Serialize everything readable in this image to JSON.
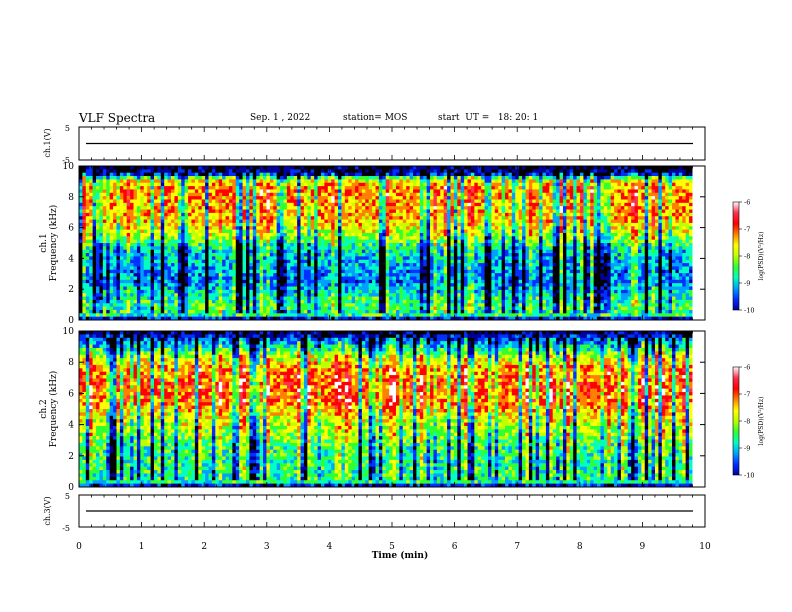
{
  "header": {
    "title": "VLF Spectra",
    "date": "Sep. 1 , 2022",
    "station": "station= MOS",
    "start": "start  UT =   18: 20: 1"
  },
  "colors": {
    "colormap": [
      "#000000",
      "#0000a0",
      "#0030ff",
      "#00a0ff",
      "#00ffc0",
      "#30ff30",
      "#c0ff00",
      "#ffff00",
      "#ff8000",
      "#ff0000",
      "#ff3050",
      "#ffffff"
    ]
  },
  "chart_data": [
    {
      "type": "line",
      "panel": "ch1",
      "ylabel": "ch.1(V)",
      "ylim": [
        -5,
        5
      ],
      "yticks": [
        "5",
        "-5"
      ],
      "x": [
        0,
        10
      ],
      "values": [
        0,
        0
      ]
    },
    {
      "type": "heatmap",
      "panel": "ch1-spectrogram",
      "ylabel": "ch.1\nFrequency (kHz)",
      "ylabel_line1": "ch.1",
      "ylabel_line2": "Frequency (kHz)",
      "yticks": [
        "0",
        "2",
        "4",
        "6",
        "8",
        "10"
      ],
      "ylim": [
        0,
        10
      ],
      "xlim": [
        0,
        9.8
      ],
      "colorbar": {
        "label": "log(PSD)(V²/Hz)",
        "ticks": [
          "-6",
          "-7",
          "-8",
          "-9",
          "-10"
        ],
        "range": [
          -10,
          -6
        ]
      },
      "profile": [
        [
          0.0,
          -10.0
        ],
        [
          0.3,
          -8.4
        ],
        [
          1.0,
          -8.3
        ],
        [
          1.6,
          -8.5
        ],
        [
          2.5,
          -9.0
        ],
        [
          3.5,
          -8.9
        ],
        [
          4.5,
          -8.7
        ],
        [
          5.5,
          -7.8
        ],
        [
          6.5,
          -7.3
        ],
        [
          7.5,
          -7.2
        ],
        [
          8.5,
          -7.1
        ],
        [
          9.1,
          -7.6
        ],
        [
          9.5,
          -9.6
        ],
        [
          10.0,
          -10.0
        ]
      ]
    },
    {
      "type": "heatmap",
      "panel": "ch2-spectrogram",
      "ylabel": "ch.2\nFrequency (kHz)",
      "ylabel_line1": "ch.2",
      "ylabel_line2": "Frequency (kHz)",
      "yticks": [
        "0",
        "2",
        "4",
        "6",
        "8",
        "10"
      ],
      "ylim": [
        0,
        10
      ],
      "xlim": [
        0,
        9.8
      ],
      "colorbar": {
        "label": "log(PSD)(V²/Hz)",
        "ticks": [
          "-6",
          "-7",
          "-8",
          "-9",
          "-10"
        ],
        "range": [
          -10,
          -6
        ]
      },
      "profile": [
        [
          0.0,
          -10.0
        ],
        [
          0.3,
          -8.5
        ],
        [
          1.0,
          -8.4
        ],
        [
          1.6,
          -8.4
        ],
        [
          2.5,
          -8.3
        ],
        [
          3.5,
          -7.9
        ],
        [
          4.5,
          -7.6
        ],
        [
          5.5,
          -7.0
        ],
        [
          6.5,
          -6.9
        ],
        [
          7.5,
          -7.1
        ],
        [
          8.3,
          -7.7
        ],
        [
          8.8,
          -8.4
        ],
        [
          9.3,
          -9.0
        ],
        [
          9.7,
          -9.6
        ],
        [
          10.0,
          -10.0
        ]
      ]
    },
    {
      "type": "line",
      "panel": "ch3",
      "ylabel": "ch.3(V)",
      "ylim": [
        -5,
        5
      ],
      "yticks": [
        "5",
        "-5"
      ],
      "x": [
        0,
        10
      ],
      "values": [
        0,
        0
      ],
      "xlabel": "Time (min)",
      "xticks": [
        "0",
        "1",
        "2",
        "3",
        "4",
        "5",
        "6",
        "7",
        "8",
        "9",
        "10"
      ]
    }
  ]
}
